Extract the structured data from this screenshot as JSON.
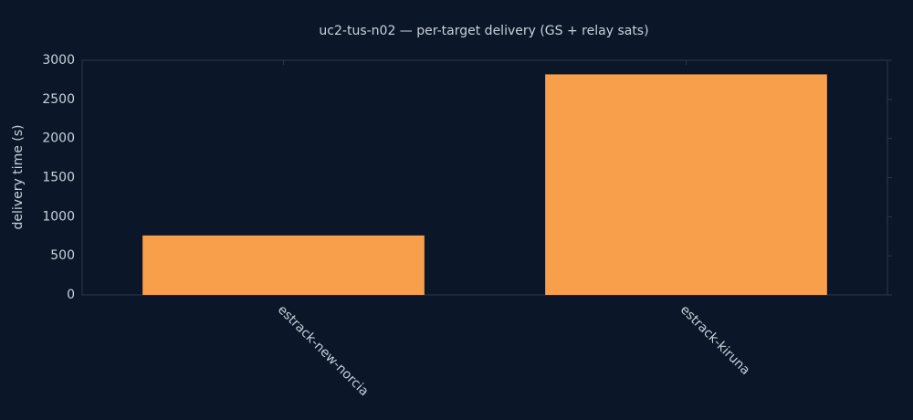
{
  "chart_data": {
    "type": "bar",
    "title": "uc2-tus-n02 — per-target delivery (GS + relay sats)",
    "y_label": "delivery time (s)",
    "categories": [
      "estrack-new-norcia",
      "estrack-kiruna"
    ],
    "values": [
      760,
      2820
    ],
    "color": "#f79f4a",
    "ylim": [
      0,
      3000
    ],
    "yticks": [
      0,
      500,
      1000,
      1500,
      2000,
      2500,
      3000
    ],
    "grid": false
  }
}
